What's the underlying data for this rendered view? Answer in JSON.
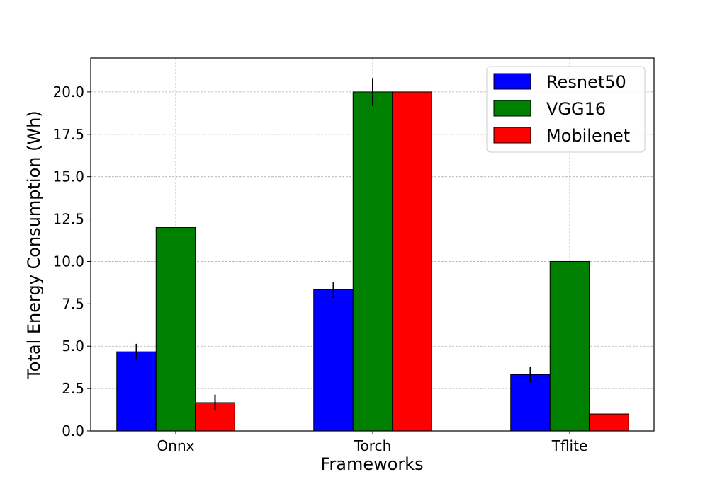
{
  "chart_data": {
    "type": "bar",
    "title": "",
    "xlabel": "Frameworks",
    "ylabel": "Total Energy Consumption (Wh)",
    "categories": [
      "Onnx",
      "Torch",
      "Tflite"
    ],
    "ylim": [
      0,
      22
    ],
    "yticks": [
      "0.0",
      "2.5",
      "5.0",
      "7.5",
      "10.0",
      "12.5",
      "15.0",
      "17.5",
      "20.0"
    ],
    "grid": true,
    "legend_position": "top-right",
    "series": [
      {
        "name": "Resnet50",
        "color": "#0000ff",
        "values": [
          4.67,
          8.33,
          3.33
        ],
        "errors": [
          0.47,
          0.47,
          0.47
        ]
      },
      {
        "name": "VGG16",
        "color": "#008000",
        "values": [
          12.0,
          20.0,
          10.0
        ],
        "errors": [
          0,
          0.82,
          0
        ]
      },
      {
        "name": "Mobilenet",
        "color": "#ff0000",
        "values": [
          1.67,
          20.0,
          1.0
        ],
        "errors": [
          0.47,
          0,
          0
        ]
      }
    ]
  }
}
